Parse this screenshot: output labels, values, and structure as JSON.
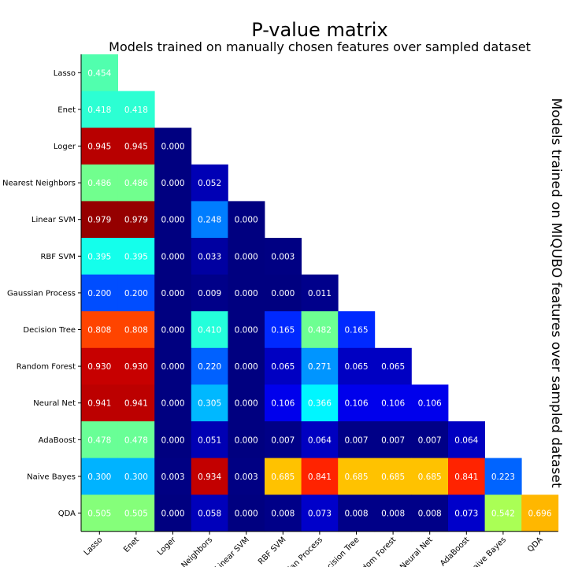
{
  "chart_data": {
    "type": "heatmap",
    "title": "P-value matrix",
    "subtitle": "Models trained on manually chosen features over sampled dataset",
    "ylabel_right": "Models trained on MIQUBO features over sampled dataset",
    "colormap": "jet",
    "value_range": [
      0,
      1
    ],
    "row_labels": [
      "Lasso",
      "Enet",
      "Loger",
      "Nearest Neighbors",
      "Linear SVM",
      "RBF SVM",
      "Gaussian Process",
      "Decision Tree",
      "Random Forest",
      "Neural Net",
      "AdaBoost",
      "Naive Bayes",
      "QDA"
    ],
    "col_labels": [
      "Lasso",
      "Enet",
      "Loger",
      "Nearest Neighbors",
      "Linear SVM",
      "RBF SVM",
      "Gaussian Process",
      "Decision Tree",
      "Random Forest",
      "Neural Net",
      "AdaBoost",
      "Naive Bayes",
      "QDA"
    ],
    "values": [
      [
        0.454
      ],
      [
        0.418,
        0.418
      ],
      [
        0.945,
        0.945,
        0.0
      ],
      [
        0.486,
        0.486,
        0.0,
        0.052
      ],
      [
        0.979,
        0.979,
        0.0,
        0.248,
        0.0
      ],
      [
        0.395,
        0.395,
        0.0,
        0.033,
        0.0,
        0.003
      ],
      [
        0.2,
        0.2,
        0.0,
        0.009,
        0.0,
        0.0,
        0.011
      ],
      [
        0.808,
        0.808,
        0.0,
        0.41,
        0.0,
        0.165,
        0.482,
        0.165
      ],
      [
        0.93,
        0.93,
        0.0,
        0.22,
        0.0,
        0.065,
        0.271,
        0.065,
        0.065
      ],
      [
        0.941,
        0.941,
        0.0,
        0.305,
        0.0,
        0.106,
        0.366,
        0.106,
        0.106,
        0.106
      ],
      [
        0.478,
        0.478,
        0.0,
        0.051,
        0.0,
        0.007,
        0.064,
        0.007,
        0.007,
        0.007,
        0.064
      ],
      [
        0.3,
        0.3,
        0.003,
        0.934,
        0.003,
        0.685,
        0.841,
        0.685,
        0.685,
        0.685,
        0.841,
        0.223
      ],
      [
        0.505,
        0.505,
        0.0,
        0.058,
        0.0,
        0.008,
        0.073,
        0.008,
        0.008,
        0.008,
        0.073,
        0.542,
        0.696
      ]
    ]
  }
}
